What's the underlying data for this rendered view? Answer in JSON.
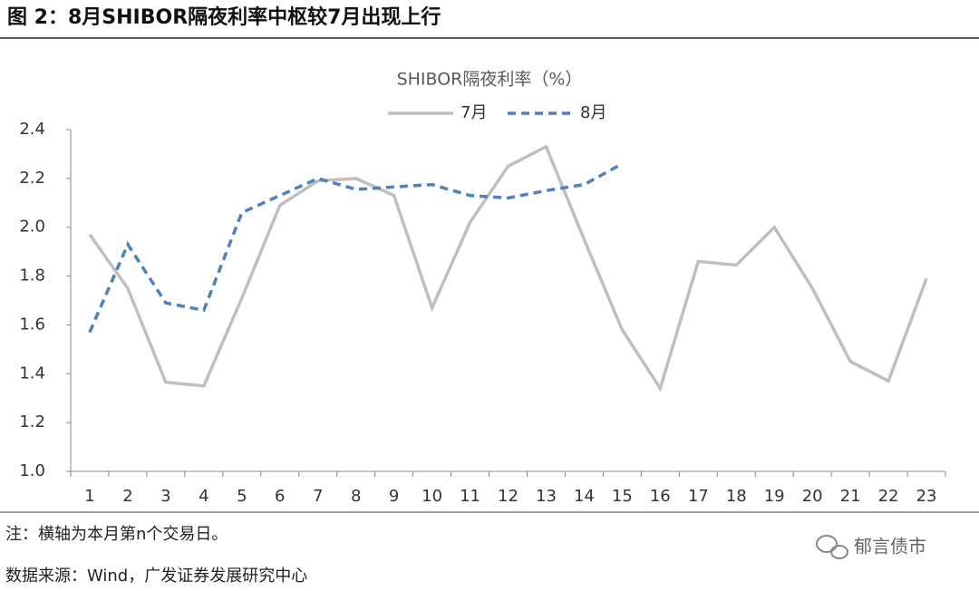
{
  "header": {
    "title": "图 2：8月SHIBOR隔夜利率中枢较7月出现上行"
  },
  "chart_data": {
    "type": "line",
    "title": "SHIBOR隔夜利率（%）",
    "categories": [
      "1",
      "2",
      "3",
      "4",
      "5",
      "6",
      "7",
      "8",
      "9",
      "10",
      "11",
      "12",
      "13",
      "14",
      "15",
      "16",
      "17",
      "18",
      "19",
      "20",
      "21",
      "22",
      "23"
    ],
    "series": [
      {
        "name": "7月",
        "color": "#bfbfbf",
        "dash": false,
        "values": [
          1.97,
          1.75,
          1.365,
          1.35,
          1.71,
          2.09,
          2.19,
          2.2,
          2.13,
          1.67,
          2.02,
          2.25,
          2.33,
          1.95,
          1.58,
          1.34,
          1.86,
          1.845,
          2.0,
          1.75,
          1.45,
          1.37,
          1.79
        ]
      },
      {
        "name": "8月",
        "color": "#4f81bd",
        "dash": true,
        "values": [
          1.57,
          1.93,
          1.69,
          1.66,
          2.06,
          2.13,
          2.2,
          2.155,
          2.165,
          2.175,
          2.13,
          2.12,
          2.15,
          2.175,
          2.26,
          null,
          null,
          null,
          null,
          null,
          null,
          null,
          null
        ]
      }
    ],
    "ylim": [
      1.0,
      2.4
    ],
    "yticks": [
      {
        "value": 1.0,
        "label": "1.0"
      },
      1.2,
      1.4,
      1.6,
      1.8,
      {
        "value": 2.0,
        "label": "2.0"
      },
      2.2,
      2.4
    ],
    "grid": false,
    "legend": "top"
  },
  "footer": {
    "note": "注：横轴为本月第n个交易日。",
    "source": "数据来源：Wind，广发证券发展研究中心",
    "watermark": "郁言债市"
  }
}
